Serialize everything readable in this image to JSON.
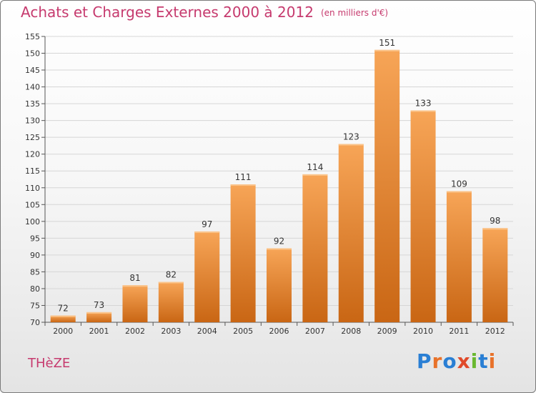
{
  "header": {
    "title": "Achats et Charges Externes 2000 à 2012",
    "unit": "(en milliers d'€)"
  },
  "commune": "THèZE",
  "logo": {
    "text": "Proxiti",
    "letter_colors": [
      "#2a7fd4",
      "#e8722a",
      "#2a7fd4",
      "#e04a2a",
      "#6ab82f",
      "#2a7fd4",
      "#e8722a"
    ]
  },
  "colors": {
    "bar_top": "#f7a557",
    "bar_bottom": "#c96614",
    "bar_cap": "#fbc48a",
    "title": "#c63a6e",
    "grid": "#d6d6d6"
  },
  "chart_data": {
    "type": "bar",
    "categories": [
      "2000",
      "2001",
      "2002",
      "2003",
      "2004",
      "2005",
      "2006",
      "2007",
      "2008",
      "2009",
      "2010",
      "2011",
      "2012"
    ],
    "values": [
      72,
      73,
      81,
      82,
      97,
      111,
      92,
      114,
      123,
      151,
      133,
      109,
      98
    ],
    "ylim": [
      70,
      155
    ],
    "yticks": [
      70,
      75,
      80,
      85,
      90,
      95,
      100,
      105,
      110,
      115,
      120,
      125,
      130,
      135,
      140,
      145,
      150,
      155
    ],
    "grid": true,
    "legend": "none"
  }
}
